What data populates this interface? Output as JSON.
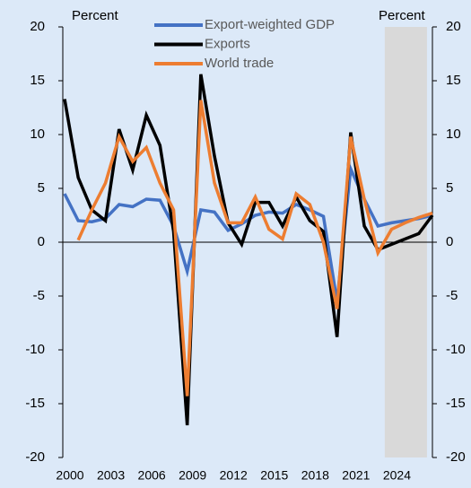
{
  "chart_data": {
    "type": "line",
    "y_axis_label": "Percent",
    "y2_axis_label": "Percent",
    "x": [
      2000,
      2001,
      2002,
      2003,
      2004,
      2005,
      2006,
      2007,
      2008,
      2009,
      2010,
      2011,
      2012,
      2013,
      2014,
      2015,
      2016,
      2017,
      2018,
      2019,
      2020,
      2021,
      2022,
      2023,
      2024,
      2025,
      2026,
      2027
    ],
    "series": [
      {
        "name": "Export-weighted GDP",
        "color": "#4472c4",
        "values": [
          4.5,
          2,
          1.9,
          2.2,
          3.5,
          3.3,
          4,
          3.9,
          1.5,
          -2.7,
          3,
          2.8,
          1.1,
          1.7,
          2.5,
          2.8,
          2.7,
          3.5,
          3,
          2.4,
          -5.5,
          6.8,
          4,
          1.5,
          1.8,
          2,
          2.2,
          2.5
        ]
      },
      {
        "name": "Exports",
        "color": "#000000",
        "values": [
          13.3,
          6,
          3,
          2,
          10.5,
          6.7,
          11.8,
          9,
          1,
          -17,
          15.6,
          8,
          1.8,
          -0.2,
          3.7,
          3.7,
          1.5,
          4.2,
          2,
          1,
          -8.8,
          10.2,
          1.5,
          -0.7,
          -0.2,
          0.3,
          0.8,
          2.5
        ]
      },
      {
        "name": "World trade",
        "color": "#ed7d31",
        "values": [
          null,
          0.2,
          3,
          5.5,
          9.8,
          7.5,
          8.8,
          5.5,
          3,
          -14.3,
          13.2,
          5.5,
          1.8,
          1.8,
          4.2,
          1.2,
          0.3,
          4.5,
          3.5,
          0,
          -6.2,
          9.8,
          4,
          -1,
          1.2,
          1.8,
          2.3,
          2.7
        ]
      }
    ],
    "xlim": [
      2000,
      2027
    ],
    "xticks": [
      2000,
      2003,
      2006,
      2009,
      2012,
      2015,
      2018,
      2021,
      2024
    ],
    "ylim": [
      -20,
      20
    ],
    "yticks": [
      -20,
      -15,
      -10,
      -5,
      0,
      5,
      10,
      15,
      20
    ],
    "y2lim": [
      -20,
      20
    ],
    "y2ticks": [
      -20,
      -15,
      -10,
      -5,
      0,
      5,
      10,
      15,
      20
    ],
    "shaded_x": [
      2023.5,
      2026.6
    ],
    "shade_color": "#d9d9d9",
    "background": "#dce9f8"
  }
}
